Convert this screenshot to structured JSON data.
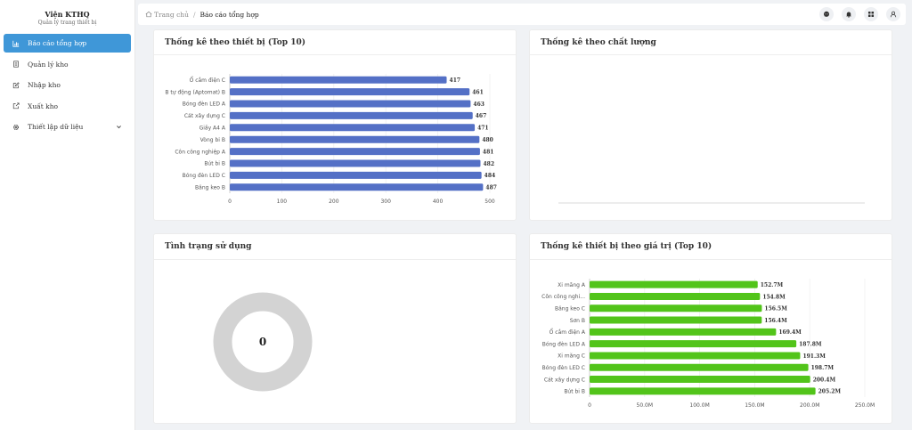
{
  "sidebar": {
    "title": "Viện KTHQ",
    "subtitle": "Quản lý trang thiết bị",
    "items": [
      {
        "label": "Báo cáo tổng hợp",
        "icon": "bar-chart-icon",
        "active": true
      },
      {
        "label": "Quản lý kho",
        "icon": "document-icon",
        "active": false
      },
      {
        "label": "Nhập kho",
        "icon": "edit-icon",
        "active": false
      },
      {
        "label": "Xuất kho",
        "icon": "export-icon",
        "active": false
      },
      {
        "label": "Thiết lập dữ liệu",
        "icon": "gear-icon",
        "active": false
      }
    ]
  },
  "header": {
    "breadcrumb_home": "Trang chủ",
    "breadcrumb_sep": "/",
    "breadcrumb_current": "Báo cáo tổng hợp",
    "actions": [
      "chat-icon",
      "bell-icon",
      "apps-icon",
      "user-icon"
    ]
  },
  "cards": {
    "device": {
      "title": "Thống kê theo thiết bị (Top 10)"
    },
    "quality": {
      "title": "Thống kê theo chất lượng"
    },
    "usage": {
      "title": "Tình trạng sử dụng",
      "center_value": "0"
    },
    "value": {
      "title": "Thống kê thiết bị theo giá trị (Top 10)"
    }
  },
  "chart_data": [
    {
      "id": "device",
      "type": "bar",
      "orientation": "horizontal",
      "categories": [
        "Ổ cắm điện C",
        "B tự động (Aptomat) B",
        "Bóng đèn LED A",
        "Cát xây dựng C",
        "Giấy A4 A",
        "Vòng bi B",
        "Côn công nghiệp A",
        "Bút bi B",
        "Bóng đèn LED C",
        "Băng keo B"
      ],
      "values": [
        417,
        461,
        463,
        467,
        471,
        480,
        481,
        482,
        484,
        487
      ],
      "value_labels": [
        "417",
        "461",
        "463",
        "467",
        "471",
        "480",
        "481",
        "482",
        "484",
        "487"
      ],
      "xlim": [
        0,
        500
      ],
      "xticks": [
        "0",
        "100",
        "200",
        "300",
        "400",
        "500"
      ],
      "color": "#5470c6",
      "title": "",
      "xlabel": "",
      "ylabel": "",
      "grid": true
    },
    {
      "id": "quality",
      "type": "bar",
      "categories": [],
      "values": []
    },
    {
      "id": "usage",
      "type": "pie",
      "donut": true,
      "values": [],
      "center_label": "0",
      "empty_color": "#d3d3d3"
    },
    {
      "id": "value",
      "type": "bar",
      "orientation": "horizontal",
      "categories": [
        "Xi măng A",
        "Côn công nghi...",
        "Băng keo C",
        "Sơn B",
        "Ổ cắm điện A",
        "Bóng đèn LED A",
        "Xi măng C",
        "Bóng đèn LED C",
        "Cát xây dựng C",
        "Bút bi B"
      ],
      "values": [
        152.7,
        154.8,
        156.5,
        156.4,
        169.4,
        187.8,
        191.3,
        198.7,
        200.4,
        205.2
      ],
      "value_labels": [
        "152.7M",
        "154.8M",
        "156.5M",
        "156.4M",
        "169.4M",
        "187.8M",
        "191.3M",
        "198.7M",
        "200.4M",
        "205.2M"
      ],
      "xlim": [
        0,
        250
      ],
      "xticks": [
        "0",
        "50.0M",
        "100.0M",
        "150.0M",
        "200.0M",
        "250.0M"
      ],
      "unit": "M",
      "color": "#52c41a",
      "title": "",
      "xlabel": "",
      "ylabel": "",
      "grid": true
    }
  ]
}
